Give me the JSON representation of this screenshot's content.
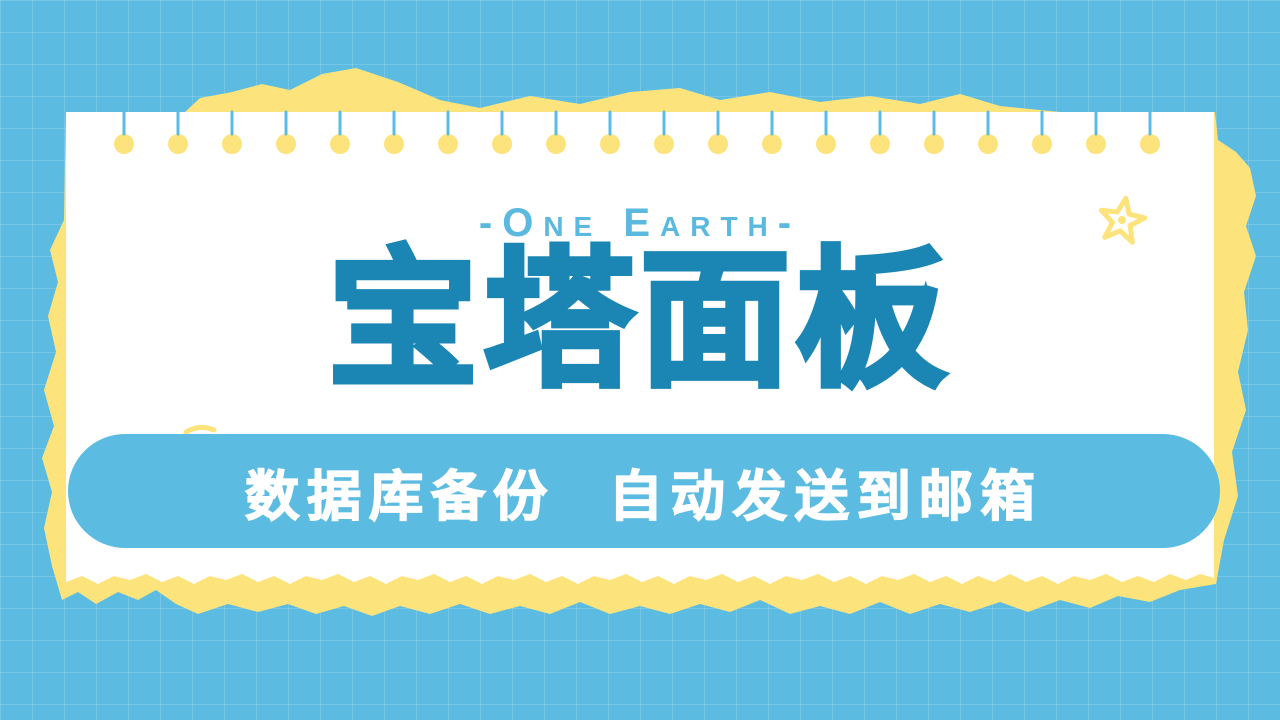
{
  "subtitle": "-One Earth-",
  "title": "宝塔面板",
  "banner_text": "数据库备份  自动发送到邮箱",
  "icons": {
    "decoration": "star-icon"
  },
  "colors": {
    "background": "#5bbbe1",
    "paper": "#ffffff",
    "torn_paper": "#fde37c",
    "title": "#1b86b4",
    "subtitle": "#5bb8df",
    "banner": "#5bbbe1",
    "banner_text": "#ffffff",
    "star": "#fde37c"
  }
}
